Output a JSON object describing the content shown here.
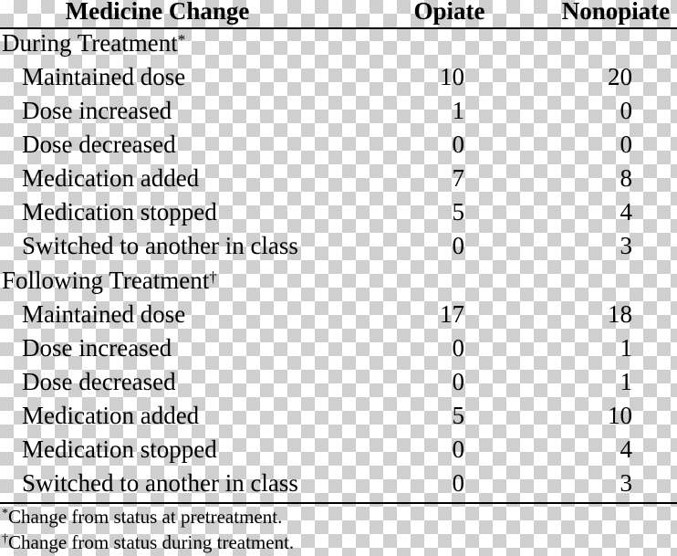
{
  "header": {
    "col1": "Medicine Change",
    "col2": "Opiate",
    "col3": "Nonopiate"
  },
  "sections": [
    {
      "title": "During Treatment",
      "mark": "*",
      "rows": [
        {
          "label": "Maintained dose",
          "opiate": "10",
          "nonopiate": "20"
        },
        {
          "label": "Dose increased",
          "opiate": "1",
          "nonopiate": "0"
        },
        {
          "label": "Dose decreased",
          "opiate": "0",
          "nonopiate": "0"
        },
        {
          "label": "Medication added",
          "opiate": "7",
          "nonopiate": "8"
        },
        {
          "label": "Medication stopped",
          "opiate": "5",
          "nonopiate": "4"
        },
        {
          "label": "Switched to another in class",
          "opiate": "0",
          "nonopiate": "3"
        }
      ]
    },
    {
      "title": "Following Treatment",
      "mark": "†",
      "rows": [
        {
          "label": "Maintained dose",
          "opiate": "17",
          "nonopiate": "18"
        },
        {
          "label": "Dose increased",
          "opiate": "0",
          "nonopiate": "1"
        },
        {
          "label": "Dose decreased",
          "opiate": "0",
          "nonopiate": "1"
        },
        {
          "label": "Medication added",
          "opiate": "5",
          "nonopiate": "10"
        },
        {
          "label": "Medication stopped",
          "opiate": "0",
          "nonopiate": "4"
        },
        {
          "label": "Switched to another in class",
          "opiate": "0",
          "nonopiate": "3"
        }
      ]
    }
  ],
  "notes": [
    {
      "mark": "*",
      "text": "Change from status at pretreatment."
    },
    {
      "mark": "†",
      "text": "Change from status during treatment."
    }
  ]
}
